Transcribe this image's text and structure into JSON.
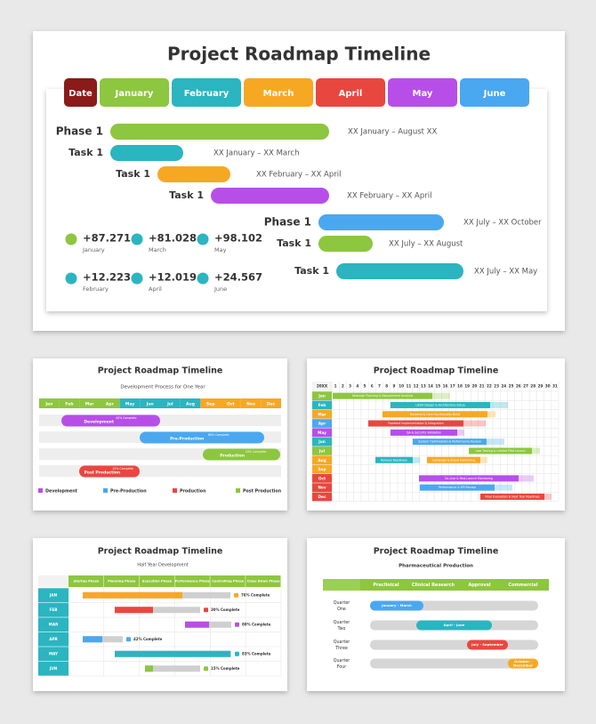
{
  "main": {
    "title": "Project Roadmap Timeline",
    "header": [
      "Date",
      "January",
      "February",
      "March",
      "April",
      "May",
      "June"
    ],
    "rows": [
      {
        "label": "Phase 1",
        "range": "XX January – August XX"
      },
      {
        "label": "Task 1",
        "range": "XX January – XX March"
      },
      {
        "label": "Task 1",
        "range": "XX February – XX April"
      },
      {
        "label": "Task 1",
        "range": "XX February – XX April"
      },
      {
        "label": "Phase 1",
        "range": "XX July – XX October"
      },
      {
        "label": "Task 1",
        "range": "XX July – XX August"
      },
      {
        "label": "Task 1",
        "range": "XX July – XX May"
      }
    ],
    "stats": [
      {
        "value": "+87.271",
        "label": "January"
      },
      {
        "value": "+81.028",
        "label": "March"
      },
      {
        "value": "+98.102",
        "label": "May"
      },
      {
        "value": "+12.223",
        "label": "February"
      },
      {
        "value": "+12.019",
        "label": "April"
      },
      {
        "value": "+24.567",
        "label": "June"
      }
    ]
  },
  "slide1": {
    "title": "Project Roadmap Timeline",
    "subtitle": "Development Process for One Year",
    "months": [
      "Jan",
      "Feb",
      "Mar",
      "Apr",
      "May",
      "Jun",
      "Jul",
      "Aug",
      "Sep",
      "Oct",
      "Nov",
      "Dec"
    ],
    "bars": [
      {
        "name": "Development",
        "note": "40% Complete"
      },
      {
        "name": "Pre-Production",
        "note": "60% Complete"
      },
      {
        "name": "Production",
        "note": "10% Complete"
      },
      {
        "name": "Post Production",
        "note": "15% Complete"
      }
    ],
    "legend": [
      "Development",
      "Pre-Production",
      "Production",
      "Post Production"
    ]
  },
  "slide2": {
    "title": "Project Roadmap Timeline",
    "corner": "20XX",
    "days": [
      "1",
      "2",
      "3",
      "4",
      "5",
      "6",
      "7",
      "8",
      "9",
      "10",
      "11",
      "12",
      "13",
      "14",
      "15",
      "16",
      "17",
      "18",
      "19",
      "20",
      "21",
      "22",
      "23",
      "24",
      "25",
      "26",
      "27",
      "28",
      "29",
      "30",
      "31"
    ],
    "months": [
      "Jan",
      "Feb",
      "Mar",
      "Apr",
      "May",
      "Jun",
      "Jul",
      "Aug",
      "Sep",
      "Oct",
      "Nov",
      "Dec"
    ],
    "tasks": [
      "Strategic Planning & Requirement Analysis",
      "UI/UX Design & Architecture Setup",
      "Backend & Core Functionality Build",
      "Frontend Implementation & Integration",
      "QA & Security Validation",
      "System Optimization & Performance Review",
      "User Testing & Limited Pilot Launch",
      "Release Readiness",
      "Campaign & Brand Positioning",
      "Go-Live & Post-Launch Monitoring",
      "Performance & KPI Review",
      "Final Evaluation & Next Year Roadmap"
    ]
  },
  "slide3": {
    "title": "Project Roadmap Timeline",
    "subtitle": "Half Year Development",
    "phases": [
      "Startup Phase",
      "Planning Phase",
      "Execution Phase",
      "Performance Phase",
      "Controlling Phase",
      "Close Down Phase"
    ],
    "months": [
      "JAN",
      "FEB",
      "MAR",
      "APR",
      "MAY",
      "JUN"
    ],
    "progress": [
      "76% Complete",
      "30% Complete",
      "80% Complete",
      "42% Complete",
      "83% Complete",
      "15% Complete"
    ]
  },
  "slide4": {
    "title": "Project Roadmap Timeline",
    "subtitle": "Pharmaceutical Production",
    "stages": [
      "Preclinical",
      "Clinical Research",
      "Approval",
      "Commercial"
    ],
    "quarters": [
      [
        "Quarter",
        "One"
      ],
      [
        "Quarter",
        "Two"
      ],
      [
        "Quarter",
        "Three"
      ],
      [
        "Quarter",
        "Four"
      ]
    ],
    "periods": [
      [
        "January - March"
      ],
      [
        "April - June"
      ],
      [
        "July - September"
      ],
      [
        "October -",
        "December"
      ]
    ]
  }
}
